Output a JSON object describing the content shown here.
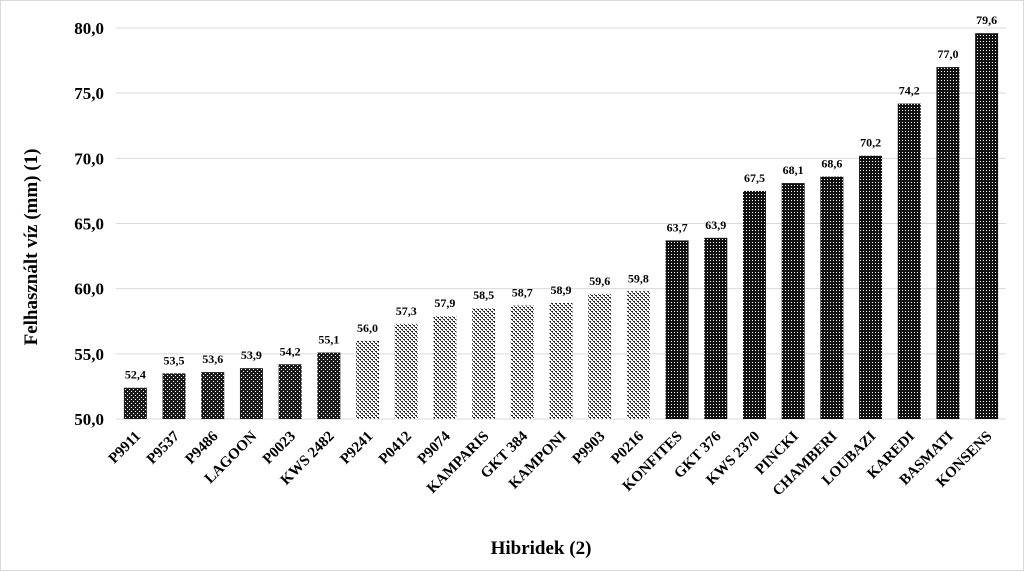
{
  "chart_data": {
    "type": "bar",
    "title": "",
    "xlabel": "Hibridek (2)",
    "ylabel": "Felhasznált víz (mm) (1)",
    "ylim": [
      50,
      80
    ],
    "yticks": [
      "50,0",
      "55,0",
      "60,0",
      "65,0",
      "70,0",
      "75,0",
      "80,0"
    ],
    "grid": true,
    "categories": [
      "P9911",
      "P9537",
      "P9486",
      "LAGOON",
      "P0023",
      "KWS 2482",
      "P9241",
      "P0412",
      "P9074",
      "KAMPARIS",
      "GKT 384",
      "KAMPONI",
      "P9903",
      "P0216",
      "KONFITES",
      "GKT 376",
      "KWS 2370",
      "PINCKI",
      "CHAMBERI",
      "LOUBAZI",
      "KAREDI",
      "BASMATI",
      "KONSENS"
    ],
    "values": [
      52.4,
      53.5,
      53.6,
      53.9,
      54.2,
      55.1,
      56.0,
      57.3,
      57.9,
      58.5,
      58.7,
      58.9,
      59.6,
      59.8,
      63.7,
      63.9,
      67.5,
      68.1,
      68.6,
      70.2,
      74.2,
      77.0,
      79.6
    ],
    "labels": [
      "52,4",
      "53,5",
      "53,6",
      "53,9",
      "54,2",
      "55,1",
      "56,0",
      "57,3",
      "57,9",
      "58,5",
      "58,7",
      "58,9",
      "59,6",
      "59,8",
      "63,7",
      "63,9",
      "67,5",
      "68,1",
      "68,6",
      "70,2",
      "74,2",
      "77,0",
      "79,6"
    ],
    "groups": [
      "dark",
      "dark",
      "dark",
      "dark",
      "dark",
      "dark",
      "light",
      "light",
      "light",
      "light",
      "light",
      "light",
      "light",
      "light",
      "dense",
      "dense",
      "dense",
      "dense",
      "dense",
      "dense",
      "dense",
      "dense",
      "dense"
    ]
  }
}
